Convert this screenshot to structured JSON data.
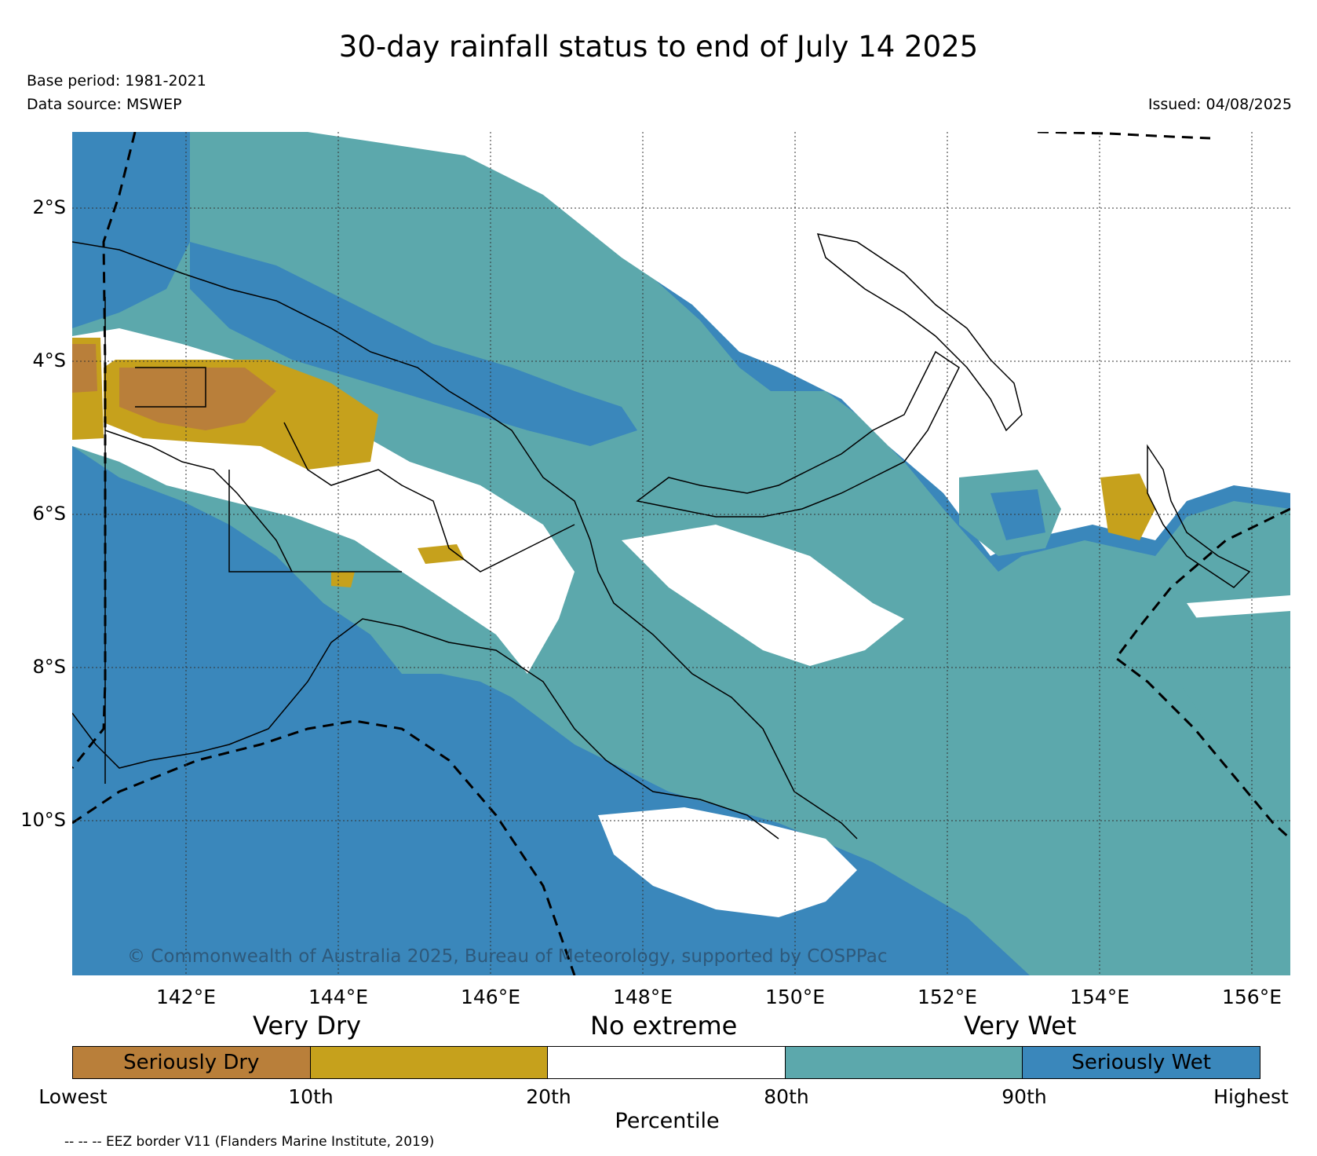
{
  "title": "30-day rainfall status to end of July 14 2025",
  "base_period": "Base period: 1981-2021",
  "data_source": "Data source: MSWEP",
  "issued": "Issued: 04/08/2025",
  "copyright": "© Commonwealth of Australia 2025, Bureau of Meteorology, supported by COSPPac",
  "map": {
    "lon_range": [
      140.5,
      156.5
    ],
    "lat_range": [
      -12.0,
      -1.0
    ],
    "lon_ticks": [
      142,
      144,
      146,
      148,
      150,
      152,
      154,
      156
    ],
    "lon_tick_labels": [
      "142°E",
      "144°E",
      "146°E",
      "148°E",
      "150°E",
      "152°E",
      "154°E",
      "156°E"
    ],
    "lat_ticks": [
      -2,
      -4,
      -6,
      -8,
      -10
    ],
    "lat_tick_labels": [
      "2°S",
      "4°S",
      "6°S",
      "8°S",
      "10°S"
    ],
    "grid": true,
    "colors": {
      "seriously_dry": "#b97f3a",
      "very_dry": "#c6a11c",
      "no_extreme": "#ffffff",
      "very_wet": "#5ca8ac",
      "seriously_wet": "#3a87bb"
    }
  },
  "legend": {
    "category_labels": [
      "Very Dry",
      "No extreme",
      "Very Wet"
    ],
    "segments": [
      {
        "label": "Seriously Dry",
        "color": "#b97f3a"
      },
      {
        "label": "",
        "color": "#c6a11c"
      },
      {
        "label": "",
        "color": "#ffffff"
      },
      {
        "label": "",
        "color": "#5ca8ac"
      },
      {
        "label": "Seriously Wet",
        "color": "#3a87bb"
      }
    ],
    "tick_labels": [
      "Lowest",
      "10th",
      "20th",
      "80th",
      "90th",
      "Highest"
    ],
    "axis_label": "Percentile"
  },
  "eez_note": "-- -- -- EEZ border V11 (Flanders Marine Institute, 2019)"
}
